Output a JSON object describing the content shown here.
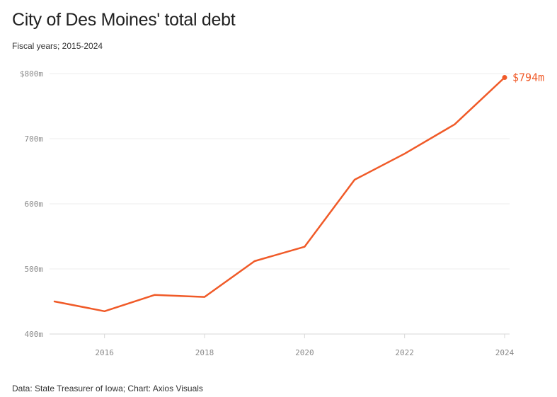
{
  "header": {
    "title": "City of Des Moines' total debt",
    "subtitle": "Fiscal years; 2015-2024"
  },
  "footer": {
    "source": "Data: State Treasurer of Iowa; Chart: Axios Visuals"
  },
  "colors": {
    "line": "#f05a28",
    "grid": "#ececec",
    "axis": "#d8d8d8",
    "tick_text": "#8a8a8a"
  },
  "chart_data": {
    "type": "line",
    "title": "City of Des Moines' total debt",
    "subtitle": "Fiscal years; 2015-2024",
    "xlabel": "",
    "ylabel": "",
    "x": [
      2015,
      2016,
      2017,
      2018,
      2019,
      2020,
      2021,
      2022,
      2023,
      2024
    ],
    "series": [
      {
        "values": [
          450,
          435,
          460,
          457,
          512,
          534,
          637,
          677,
          722,
          794
        ]
      }
    ],
    "xlim": [
      2015,
      2024
    ],
    "ylim": [
      400,
      800
    ],
    "x_ticks": [
      2016,
      2018,
      2020,
      2022,
      2024
    ],
    "x_tick_labels": [
      "2016",
      "2018",
      "2020",
      "2022",
      "2024"
    ],
    "y_ticks": [
      400,
      500,
      600,
      700,
      800
    ],
    "y_tick_labels": [
      "400m",
      "500m",
      "600m",
      "700m",
      "$800m"
    ],
    "grid": true,
    "end_label": "$794m"
  }
}
